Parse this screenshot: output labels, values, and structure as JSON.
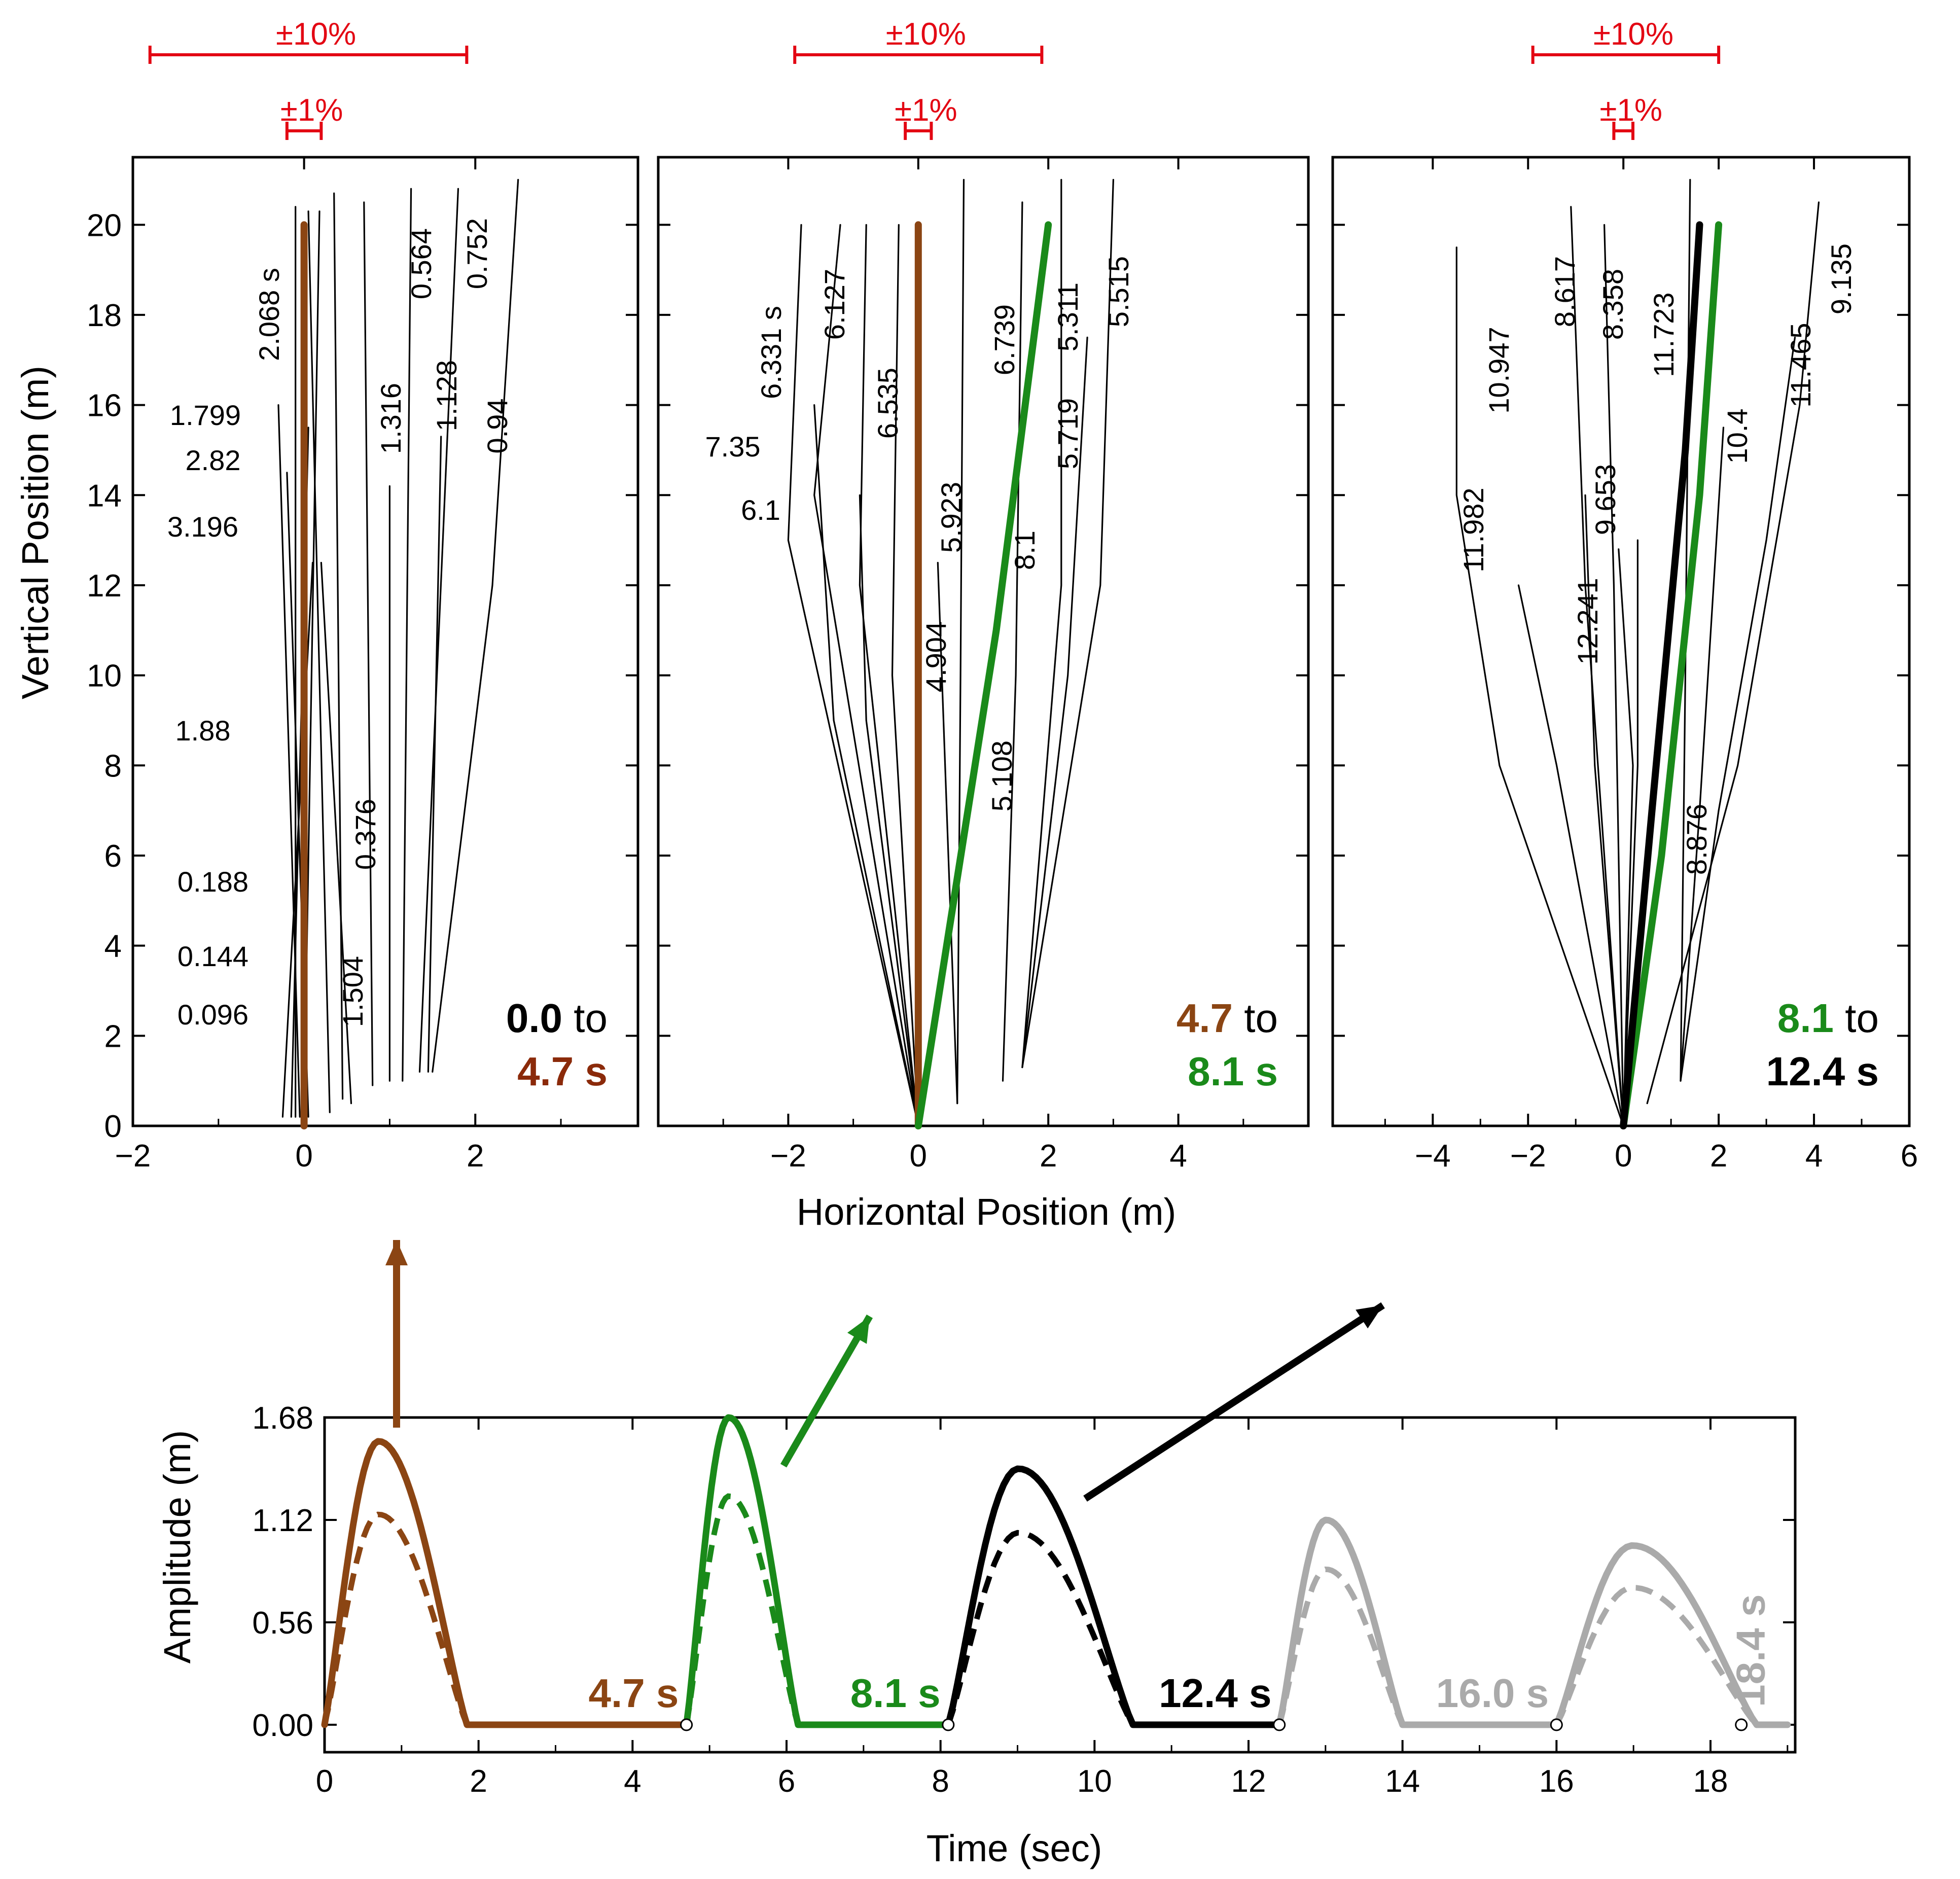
{
  "chart_data": [
    {
      "type": "line",
      "panel": "left",
      "xlabel": "",
      "ylabel": "Vertical Position (m)",
      "xlim": [
        -2,
        3.9
      ],
      "ylim": [
        0,
        21.5
      ],
      "x_ticks": [
        "−2",
        "0",
        "2"
      ],
      "y_ticks": [
        "0",
        "2",
        "4",
        "6",
        "8",
        "10",
        "12",
        "14",
        "16",
        "18",
        "20"
      ],
      "error_bars": [
        {
          "label": "±10%",
          "range": [
            -1.8,
            1.9
          ]
        },
        {
          "label": "±1%",
          "range": [
            -0.2,
            0.2
          ]
        }
      ],
      "corner_text": {
        "start": "0.0",
        "mid": " to",
        "end": "4.7 s"
      },
      "colors": {
        "start": "#000000",
        "end": "#8b2a0a",
        "mid": "#000000"
      },
      "time_labels": [
        "2.068 s",
        "1.799",
        "2.82",
        "3.196",
        "1.88",
        "0.188",
        "0.144",
        "0.096",
        "1.504",
        "0.376",
        "1.316",
        "0.564",
        "1.128",
        "0.752",
        "0.94"
      ],
      "series": [
        {
          "name": "0.096",
          "x": [
            0.0,
            0.18
          ],
          "y": [
            0.3,
            20.3
          ]
        },
        {
          "name": "0.144",
          "x": [
            0.3,
            0.05
          ],
          "y": [
            0.3,
            20.3
          ]
        },
        {
          "name": "0.188",
          "x": [
            0.45,
            0.35
          ],
          "y": [
            0.6,
            20.7
          ]
        },
        {
          "name": "0.376",
          "x": [
            0.8,
            0.7
          ],
          "y": [
            0.9,
            20.5
          ]
        },
        {
          "name": "1.504",
          "x": [
            0.55,
            0.2
          ],
          "y": [
            0.5,
            12.5
          ]
        },
        {
          "name": "0.564",
          "x": [
            1.15,
            1.25
          ],
          "y": [
            1.0,
            20.8
          ]
        },
        {
          "name": "1.316",
          "x": [
            1.0,
            1.0
          ],
          "y": [
            1.0,
            14.2
          ]
        },
        {
          "name": "0.752",
          "x": [
            1.35,
            1.8
          ],
          "y": [
            1.2,
            20.8
          ]
        },
        {
          "name": "1.128",
          "x": [
            1.45,
            1.6
          ],
          "y": [
            1.2,
            15.3
          ]
        },
        {
          "name": "0.94",
          "x": [
            1.5,
            2.2,
            2.5
          ],
          "y": [
            1.2,
            12.0,
            21.0
          ]
        },
        {
          "name": "2.068 s",
          "x": [
            -0.1,
            -0.1
          ],
          "y": [
            0.2,
            20.4
          ]
        },
        {
          "name": "1.799",
          "x": [
            -0.05,
            -0.3
          ],
          "y": [
            0.2,
            16.0
          ]
        },
        {
          "name": "2.82",
          "x": [
            -0.15,
            0.05
          ],
          "y": [
            0.2,
            15.5
          ]
        },
        {
          "name": "3.196",
          "x": [
            0.05,
            -0.2
          ],
          "y": [
            0.2,
            14.5
          ]
        },
        {
          "name": "1.88",
          "x": [
            -0.25,
            0.1
          ],
          "y": [
            0.2,
            12.5
          ]
        },
        {
          "name": "4.7 s path",
          "x": [
            0.0,
            0.0
          ],
          "y": [
            0.0,
            20.0
          ],
          "color": "#8b4513",
          "width": "thick"
        }
      ]
    },
    {
      "type": "line",
      "panel": "middle",
      "xlabel": "Horizontal Position (m)",
      "ylabel": "",
      "xlim": [
        -4,
        6
      ],
      "ylim": [
        0,
        21.5
      ],
      "x_ticks": [
        "−2",
        "0",
        "2",
        "4"
      ],
      "error_bars": [
        {
          "label": "±10%",
          "range": [
            -1.9,
            1.9
          ]
        },
        {
          "label": "±1%",
          "range": [
            -0.2,
            0.2
          ]
        }
      ],
      "corner_text": {
        "start": "4.7",
        "mid": " to",
        "end": "8.1 s"
      },
      "colors": {
        "start": "#8b4513",
        "end": "#1a8a1a",
        "mid": "#000000"
      },
      "time_labels": [
        "6.331 s",
        "6.127",
        "6.535",
        "7.35",
        "6.1",
        "5.923",
        "4.904",
        "5.108",
        "6.739",
        "5.311",
        "5.719",
        "5.515",
        "8.1"
      ],
      "series": [
        {
          "name": "6.331 s",
          "x": [
            0.0,
            -2.0,
            -1.8
          ],
          "y": [
            0.0,
            13.0,
            20.0
          ]
        },
        {
          "name": "6.127",
          "x": [
            0.0,
            -1.6,
            -1.2
          ],
          "y": [
            0.0,
            14.0,
            20.0
          ]
        },
        {
          "name": "6.535",
          "x": [
            0.0,
            -0.9,
            -0.8
          ],
          "y": [
            0.0,
            12.0,
            20.0
          ]
        },
        {
          "name": "7.35",
          "x": [
            0.0,
            -1.3,
            -1.6
          ],
          "y": [
            0.0,
            9.0,
            16.0
          ]
        },
        {
          "name": "6.1",
          "x": [
            0.0,
            -0.8,
            -0.9
          ],
          "y": [
            0.0,
            9.0,
            14.0
          ]
        },
        {
          "name": "5.923",
          "x": [
            0.0,
            -0.4,
            -0.3
          ],
          "y": [
            0.0,
            10.0,
            20.0
          ]
        },
        {
          "name": "4.904",
          "x": [
            0.6,
            0.65,
            0.7
          ],
          "y": [
            0.5,
            10.0,
            21.0
          ]
        },
        {
          "name": "5.108",
          "x": [
            1.3,
            1.5,
            1.6
          ],
          "y": [
            1.0,
            10.0,
            20.5
          ]
        },
        {
          "name": "6.739",
          "x": [
            0.6,
            0.3
          ],
          "y": [
            0.5,
            12.5
          ]
        },
        {
          "name": "5.311",
          "x": [
            1.6,
            2.2,
            2.2
          ],
          "y": [
            1.3,
            12.0,
            21.0
          ]
        },
        {
          "name": "5.719",
          "x": [
            1.6,
            2.3,
            2.6
          ],
          "y": [
            1.3,
            10.0,
            17.5
          ]
        },
        {
          "name": "5.515",
          "x": [
            1.6,
            2.8,
            3.0
          ],
          "y": [
            1.3,
            12.0,
            21.0
          ]
        },
        {
          "name": "4.7 s path",
          "x": [
            0.0,
            0.0
          ],
          "y": [
            0.0,
            20.0
          ],
          "color": "#8b4513",
          "width": "thick"
        },
        {
          "name": "8.1 s path",
          "x": [
            0.0,
            0.6,
            1.2,
            1.6,
            2.0
          ],
          "y": [
            0.0,
            5.5,
            11.0,
            15.5,
            20.0
          ],
          "color": "#1a8a1a",
          "width": "thick"
        }
      ]
    },
    {
      "type": "line",
      "panel": "right",
      "xlabel": "",
      "ylabel": "",
      "xlim": [
        -6.1,
        6
      ],
      "ylim": [
        0,
        21.5
      ],
      "x_ticks": [
        "−4",
        "−2",
        "0",
        "2",
        "4",
        "6"
      ],
      "error_bars": [
        {
          "label": "±10%",
          "range": [
            -1.9,
            2.0
          ]
        },
        {
          "label": "±1%",
          "range": [
            -0.2,
            0.2
          ]
        }
      ],
      "corner_text": {
        "start": "8.1",
        "mid": " to",
        "end": "12.4 s"
      },
      "colors": {
        "start": "#1a8a1a",
        "end": "#000000",
        "mid": "#000000"
      },
      "time_labels": [
        "10.947",
        "11.982",
        "12.241",
        "9.653",
        "8.617",
        "8.358",
        "11.723",
        "8.876",
        "10.4",
        "11.465",
        "9.135"
      ],
      "series": [
        {
          "name": "10.947",
          "x": [
            0.0,
            -2.6,
            -3.5,
            -3.5
          ],
          "y": [
            0.0,
            8.0,
            14.0,
            19.5
          ]
        },
        {
          "name": "11.982",
          "x": [
            0.0,
            -1.4,
            -2.2
          ],
          "y": [
            0.0,
            8.0,
            12.0
          ]
        },
        {
          "name": "12.241",
          "x": [
            0.0,
            -0.6,
            -0.8
          ],
          "y": [
            0.0,
            8.0,
            14.0
          ]
        },
        {
          "name": "9.653",
          "x": [
            0.0,
            0.2,
            -0.1
          ],
          "y": [
            0.0,
            8.0,
            12.8
          ]
        },
        {
          "name": "8.617",
          "x": [
            0.0,
            -0.8,
            -1.1
          ],
          "y": [
            0.0,
            12.0,
            20.4
          ]
        },
        {
          "name": "8.358",
          "x": [
            0.0,
            -0.2,
            -0.4
          ],
          "y": [
            0.0,
            12.0,
            20.0
          ]
        },
        {
          "name": "11.723",
          "x": [
            0.0,
            0.3,
            0.3
          ],
          "y": [
            0.0,
            8.0,
            13.0
          ]
        },
        {
          "name": "8.876",
          "x": [
            1.2,
            1.3,
            1.4
          ],
          "y": [
            1.0,
            10.0,
            21.0
          ]
        },
        {
          "name": "10.4",
          "x": [
            1.2,
            1.6,
            2.1
          ],
          "y": [
            1.0,
            7.0,
            15.5
          ]
        },
        {
          "name": "11.465",
          "x": [
            1.2,
            2.0,
            3.0,
            3.6
          ],
          "y": [
            1.0,
            7.0,
            13.0,
            17.5
          ]
        },
        {
          "name": "9.135",
          "x": [
            0.5,
            2.4,
            3.7,
            4.1
          ],
          "y": [
            0.5,
            8.0,
            16.0,
            20.5
          ]
        },
        {
          "name": "8.1 s path",
          "x": [
            0.0,
            0.8,
            1.6,
            2.0
          ],
          "y": [
            0.0,
            6.0,
            14.0,
            20.0
          ],
          "color": "#1a8a1a",
          "width": "thick"
        },
        {
          "name": "12.4 s path",
          "x": [
            0.0,
            0.6,
            1.3,
            1.6
          ],
          "y": [
            0.0,
            7.0,
            15.0,
            20.0
          ],
          "color": "#000000",
          "width": "thick"
        }
      ]
    },
    {
      "type": "line",
      "panel": "bottom",
      "xlabel": "Time (sec)",
      "ylabel": "Amplitude (m)",
      "xlim": [
        0,
        19.1
      ],
      "ylim": [
        -0.15,
        1.68
      ],
      "x_ticks": [
        "0",
        "2",
        "4",
        "6",
        "8",
        "10",
        "12",
        "14",
        "16",
        "18"
      ],
      "y_ticks": [
        "0.00",
        "0.56",
        "1.12",
        "1.68"
      ],
      "markers": [
        4.7,
        8.1,
        12.4,
        16.0,
        18.4
      ],
      "segment_labels": [
        {
          "text": "4.7 s",
          "color": "#8b4513",
          "x": 4.6
        },
        {
          "text": "8.1 s",
          "color": "#1a8a1a",
          "x": 8.0
        },
        {
          "text": "12.4 s",
          "color": "#000000",
          "x": 12.3
        },
        {
          "text": "16.0 s",
          "color": "#aaaaaa",
          "x": 15.9
        },
        {
          "text": "18.4 s",
          "color": "#aaaaaa",
          "x": 18.7
        }
      ],
      "series": [
        {
          "name": "pulse 1",
          "color": "#8b4513",
          "x_start": 0.0,
          "x_end": 1.85,
          "peak": 1.55,
          "peak_dashed": 1.15,
          "flat_to": 4.7
        },
        {
          "name": "pulse 2",
          "color": "#1a8a1a",
          "x_start": 4.7,
          "x_end": 6.15,
          "peak": 1.68,
          "peak_dashed": 1.25,
          "flat_to": 8.1
        },
        {
          "name": "pulse 3",
          "color": "#000000",
          "x_start": 8.1,
          "x_end": 10.5,
          "peak": 1.4,
          "peak_dashed": 1.05,
          "flat_to": 12.4
        },
        {
          "name": "pulse 4",
          "color": "#aaaaaa",
          "x_start": 12.4,
          "x_end": 14.0,
          "peak": 1.12,
          "peak_dashed": 0.85,
          "flat_to": 16.0
        },
        {
          "name": "pulse 5",
          "color": "#aaaaaa",
          "x_start": 16.0,
          "x_end": 18.6,
          "peak": 0.98,
          "peak_dashed": 0.75,
          "flat_to": 19.0
        }
      ],
      "arrows": [
        {
          "color": "#8b4513",
          "angle_deg": 90
        },
        {
          "color": "#1a8a1a",
          "angle_deg": 60
        },
        {
          "color": "#000000",
          "angle_deg": 33
        }
      ]
    }
  ]
}
